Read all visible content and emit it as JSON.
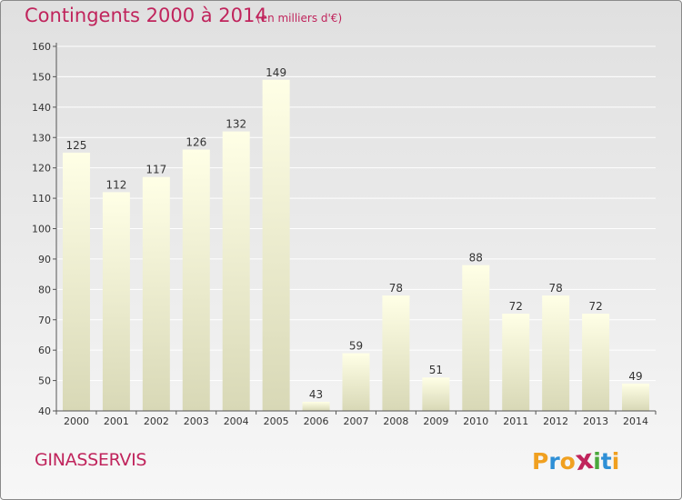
{
  "header": {
    "title": "Contingents 2000 à 2014",
    "subtitle": "(en milliers d'€)"
  },
  "footer": {
    "commune": "GINASSERVIS",
    "brand_letters": [
      "P",
      "r",
      "o",
      "x",
      "i",
      "t",
      "i"
    ],
    "brand_colors": [
      "#f0a020",
      "#2e8fd6",
      "#f0a020",
      "#c0245c",
      "#4aa83c",
      "#2e8fd6",
      "#f0a020"
    ]
  },
  "colors": {
    "title": "#c0245c",
    "bar_top": "#ffffe6",
    "bar_bottom": "#d8d8b6",
    "axis": "#555555",
    "grid": "#ffffff"
  },
  "chart_data": {
    "type": "bar",
    "categories": [
      "2000",
      "2001",
      "2002",
      "2003",
      "2004",
      "2005",
      "2006",
      "2007",
      "2008",
      "2009",
      "2010",
      "2011",
      "2012",
      "2013",
      "2014"
    ],
    "values": [
      125,
      112,
      117,
      126,
      132,
      149,
      43,
      59,
      78,
      51,
      88,
      72,
      78,
      72,
      49
    ],
    "title": "Contingents 2000 à 2014",
    "xlabel": "",
    "ylabel": "",
    "ylim": [
      40,
      160
    ],
    "yticks": [
      40,
      50,
      60,
      70,
      80,
      90,
      100,
      110,
      120,
      130,
      140,
      150,
      160
    ],
    "grid": true,
    "data_labels": true
  }
}
